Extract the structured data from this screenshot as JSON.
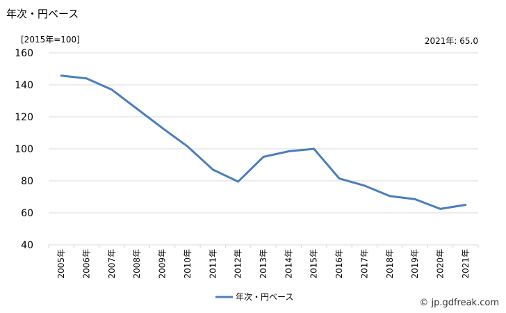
{
  "title": "年次・円ベース",
  "unit_label": "[2015年=100]",
  "latest_note": "2021年: 65.0",
  "credit": "© jp.gdfreak.com",
  "chart_data": {
    "type": "line",
    "categories": [
      "2005年",
      "2006年",
      "2007年",
      "2008年",
      "2009年",
      "2010年",
      "2011年",
      "2012年",
      "2013年",
      "2014年",
      "2015年",
      "2016年",
      "2017年",
      "2018年",
      "2019年",
      "2020年",
      "2021年"
    ],
    "series": [
      {
        "name": "年次・円ベース",
        "color": "#4a7ebb",
        "values": [
          145.8,
          144.0,
          137.0,
          125.0,
          113.0,
          101.5,
          87.0,
          79.5,
          95.0,
          98.5,
          100.0,
          81.5,
          77.0,
          70.5,
          68.5,
          62.5,
          65.0
        ]
      }
    ],
    "ylim": [
      40,
      160
    ],
    "yticks": [
      40,
      60,
      80,
      100,
      120,
      140,
      160
    ],
    "grid": true,
    "legend": "bottom-center"
  }
}
